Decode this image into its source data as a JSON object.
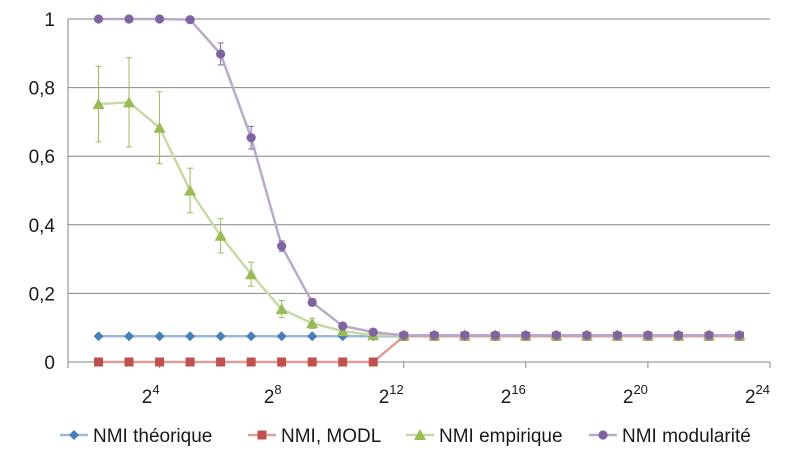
{
  "chart_data": {
    "type": "line",
    "title": "",
    "xlabel": "",
    "ylabel": "",
    "x_scale": "log2",
    "x": [
      4,
      8,
      16,
      32,
      64,
      128,
      256,
      512,
      1024,
      2048,
      4096,
      8192,
      16384,
      32768,
      65536,
      131072,
      262144,
      524288,
      1048576,
      2097152,
      4194304,
      8388608
    ],
    "xlim": [
      2,
      16777216
    ],
    "ylim": [
      0,
      1
    ],
    "grid": true,
    "legend_position": "bottom",
    "x_ticks": [
      {
        "base": "2",
        "exp": "4"
      },
      {
        "base": "2",
        "exp": "8"
      },
      {
        "base": "2",
        "exp": "12"
      },
      {
        "base": "2",
        "exp": "16"
      },
      {
        "base": "2",
        "exp": "20"
      },
      {
        "base": "2",
        "exp": "24"
      }
    ],
    "y_ticks": [
      "0",
      "0,2",
      "0,4",
      "0,6",
      "0,8",
      "1"
    ],
    "series": [
      {
        "name": "NMI théorique",
        "color": "#4a7ebb",
        "marker": "diamond",
        "values": [
          0.075,
          0.075,
          0.075,
          0.075,
          0.075,
          0.075,
          0.075,
          0.075,
          0.075,
          0.075,
          0.075,
          0.075,
          0.075,
          0.075,
          0.075,
          0.075,
          0.075,
          0.075,
          0.075,
          0.075,
          0.075,
          0.075
        ]
      },
      {
        "name": "NMI, MODL",
        "color": "#c0504d",
        "marker": "square",
        "values": [
          0,
          0,
          0,
          0,
          0,
          0,
          0,
          0,
          0,
          0,
          0.075,
          0.075,
          0.075,
          0.075,
          0.075,
          0.075,
          0.075,
          0.075,
          0.075,
          0.075,
          0.075,
          0.075
        ]
      },
      {
        "name": "NMI empirique",
        "color": "#9bbb59",
        "marker": "triangle",
        "values": [
          0.752,
          0.757,
          0.683,
          0.5,
          0.368,
          0.256,
          0.154,
          0.113,
          0.09,
          0.078,
          0.078,
          0.078,
          0.078,
          0.078,
          0.078,
          0.078,
          0.078,
          0.078,
          0.078,
          0.078,
          0.078,
          0.078
        ],
        "error": [
          0.11,
          0.13,
          0.105,
          0.065,
          0.05,
          0.035,
          0.025,
          0.015,
          0.01,
          0.005,
          0.003,
          0.003,
          0.003,
          0.003,
          0.003,
          0.003,
          0.003,
          0.003,
          0.003,
          0.003,
          0.003,
          0.003
        ]
      },
      {
        "name": "NMI modularité",
        "color": "#8064a2",
        "marker": "circle",
        "values": [
          1,
          1,
          1,
          0.998,
          0.898,
          0.654,
          0.338,
          0.174,
          0.105,
          0.087,
          0.078,
          0.078,
          0.078,
          0.078,
          0.078,
          0.078,
          0.078,
          0.078,
          0.078,
          0.078,
          0.078,
          0.078
        ],
        "error": [
          0,
          0,
          0,
          0.004,
          0.032,
          0.033,
          0.015,
          0.01,
          0.006,
          0.004,
          0.003,
          0.003,
          0.003,
          0.003,
          0.003,
          0.003,
          0.003,
          0.003,
          0.003,
          0.003,
          0.003,
          0.003
        ]
      }
    ]
  }
}
